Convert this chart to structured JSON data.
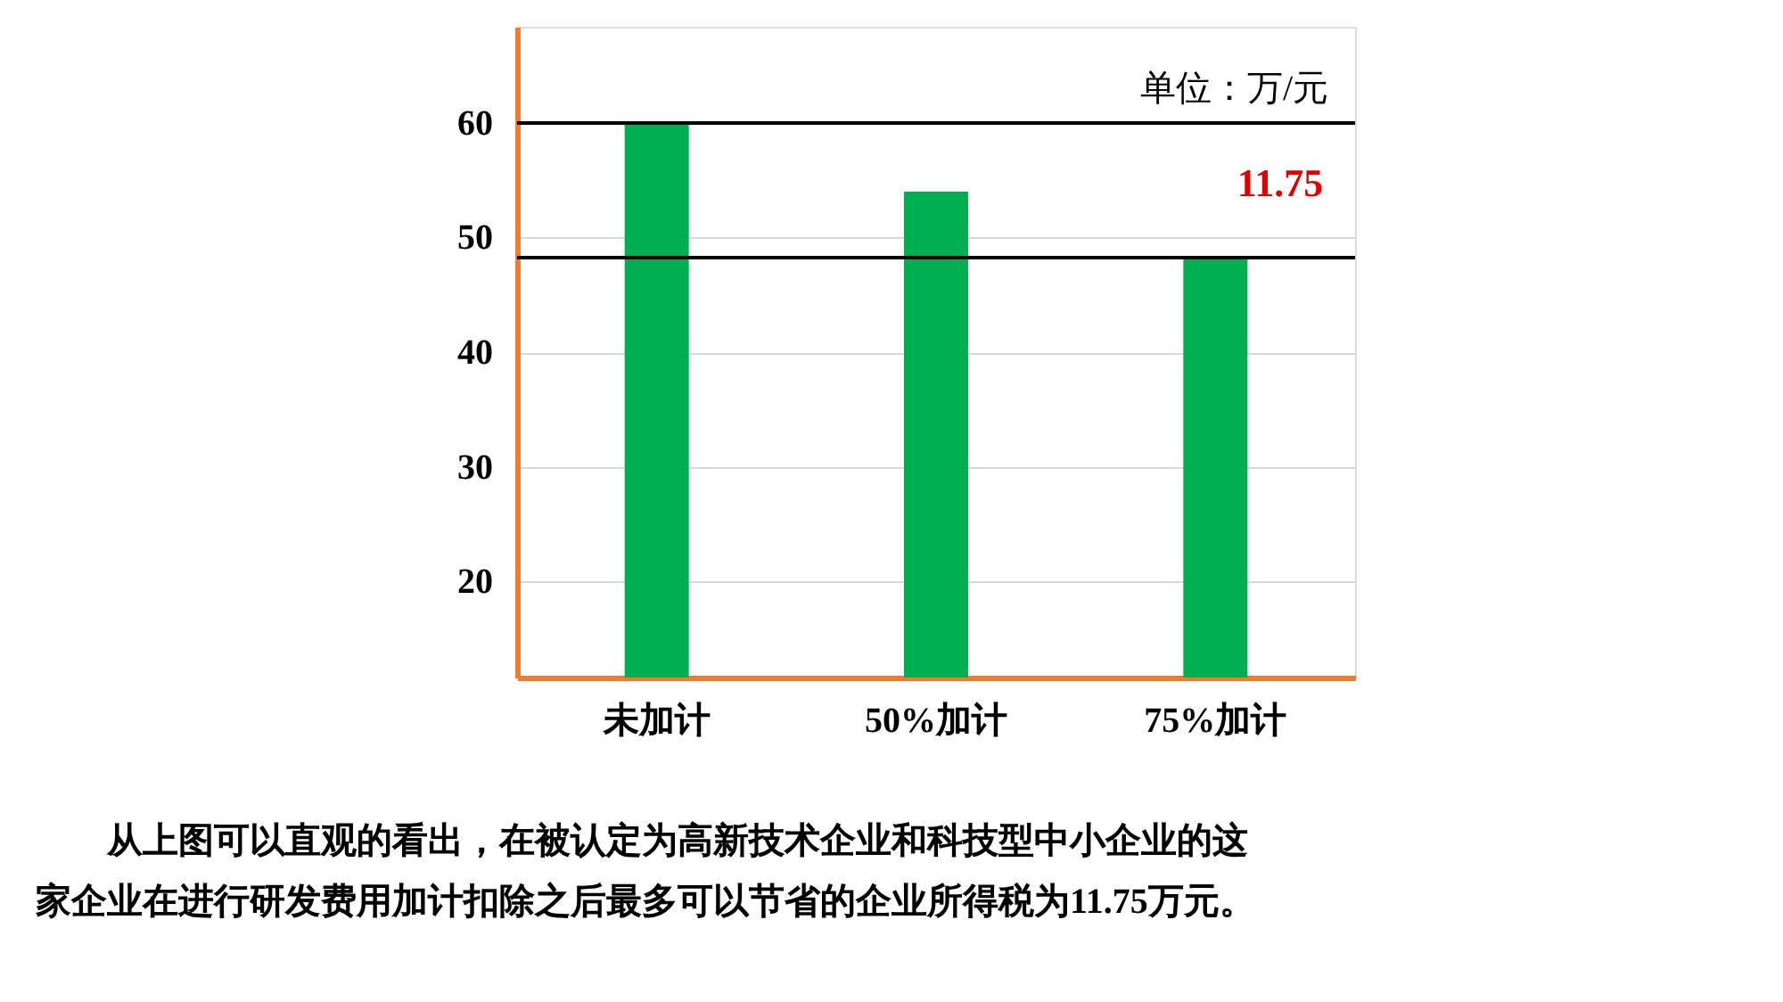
{
  "chart_data": {
    "type": "bar",
    "categories": [
      "未加计",
      "50%加计",
      "75%加计"
    ],
    "values": [
      60,
      54,
      48.25
    ],
    "color": "#00b050",
    "ylim": [
      11.6,
      68.4
    ],
    "yticks": [
      20,
      30,
      40,
      50,
      60
    ],
    "grid": "y",
    "ref_lines": [
      {
        "axis": "y",
        "value": 60,
        "color": "#000000"
      },
      {
        "axis": "y",
        "value": 48.25,
        "color": "#000000"
      }
    ],
    "annotations": [
      "单位：万/元",
      "11.75",
      "从上图可以直观的看出，在被认定为高新技术企业和科技型中小企业的这",
      "家企业在进行研发费用加计扣除之后最多可以节省的企业所得税为11.75万元。"
    ]
  }
}
